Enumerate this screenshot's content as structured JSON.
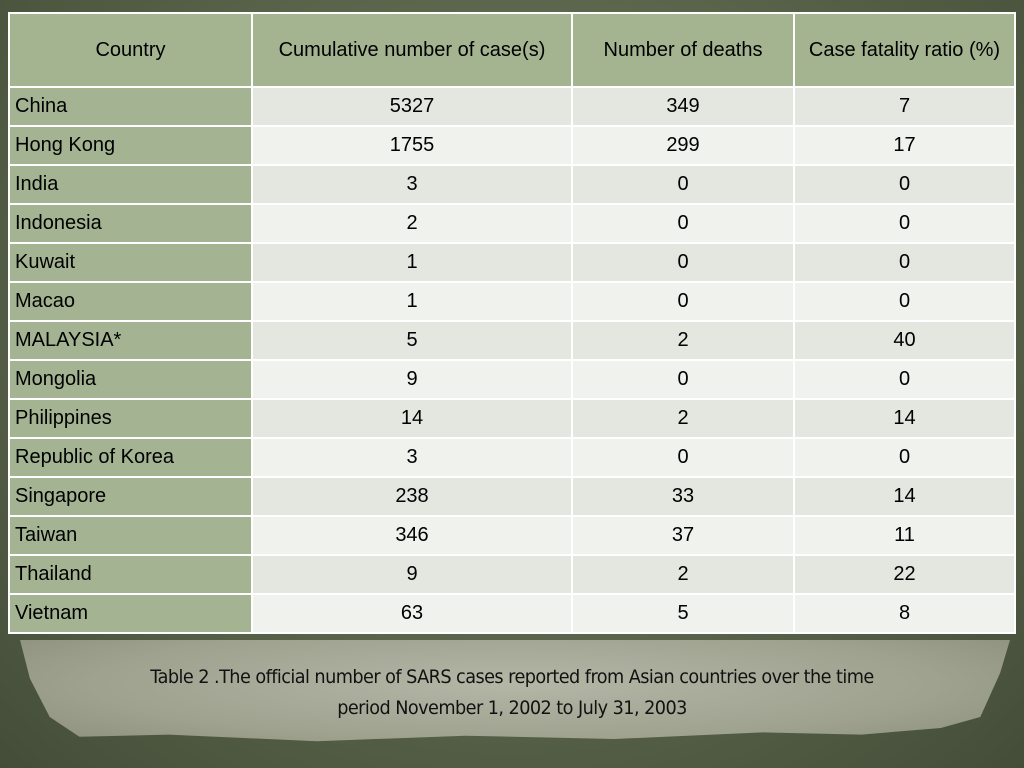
{
  "table": {
    "headers": [
      "Country",
      "Cumulative number of case(s)",
      "Number of deaths",
      "Case fatality ratio (%)"
    ],
    "rows": [
      [
        "China",
        "5327",
        "349",
        "7"
      ],
      [
        "Hong Kong",
        "1755",
        "299",
        "17"
      ],
      [
        "India",
        "3",
        "0",
        "0"
      ],
      [
        "Indonesia",
        "2",
        "0",
        "0"
      ],
      [
        "Kuwait",
        "1",
        "0",
        "0"
      ],
      [
        "Macao",
        "1",
        "0",
        "0"
      ],
      [
        "MALAYSIA*",
        "5",
        "2",
        "40"
      ],
      [
        "Mongolia",
        "9",
        "0",
        "0"
      ],
      [
        "Philippines",
        "14",
        "2",
        "14"
      ],
      [
        "Republic of Korea",
        "3",
        "0",
        "0"
      ],
      [
        "Singapore",
        "238",
        "33",
        "14"
      ],
      [
        "Taiwan",
        "346",
        "37",
        "11"
      ],
      [
        "Thailand",
        "9",
        "2",
        "22"
      ],
      [
        "Vietnam",
        "63",
        "5",
        "8"
      ]
    ]
  },
  "caption": {
    "line1": "Table 2 .The official number of SARS cases reported from Asian countries over the time",
    "line2": "period November 1, 2002 to July 31, 2003"
  },
  "colors": {
    "header": "#a4b491",
    "country_column": "#a4b492",
    "row_odd": "#e4e6e0",
    "row_even": "#eff2ed",
    "background": "#59634a"
  }
}
